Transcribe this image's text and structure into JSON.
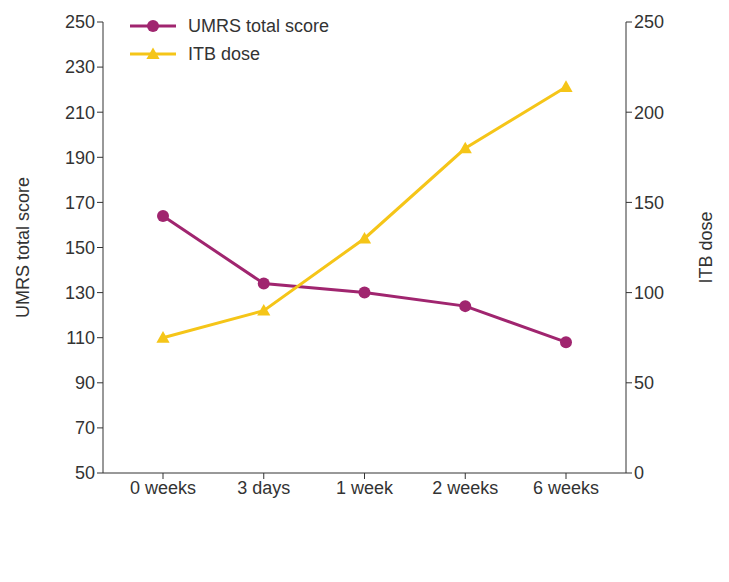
{
  "chart_data": {
    "type": "line",
    "categories": [
      "0 weeks",
      "3 days",
      "1 week",
      "2 weeks",
      "6 weeks"
    ],
    "ylabel": "UMRS total score",
    "y2label": "ITB dose",
    "ylim": [
      50,
      250
    ],
    "yticks": [
      50,
      70,
      90,
      110,
      130,
      150,
      170,
      190,
      210,
      230,
      250
    ],
    "y2lim": [
      0,
      250
    ],
    "y2ticks": [
      0,
      50,
      100,
      150,
      200,
      250
    ],
    "grid": false,
    "legend": "upper left",
    "series": [
      {
        "name": "UMRS total score",
        "color": "#a0256f",
        "marker": "circle",
        "values": [
          164,
          134,
          130,
          124,
          108
        ]
      },
      {
        "name": "ITB dose",
        "color": "#f5c518",
        "marker": "triangle",
        "axis": "y2",
        "values": [
          75,
          90,
          130,
          180,
          214
        ]
      }
    ]
  }
}
